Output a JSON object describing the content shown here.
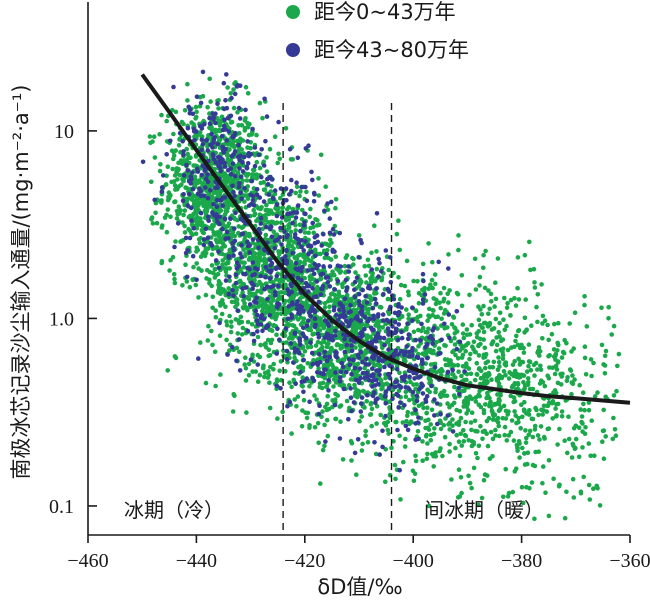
{
  "chart_data": {
    "type": "scatter",
    "title": "",
    "xlabel": "δD值/‰",
    "ylabel": "南极冰芯记录沙尘输入通量/(mg·m⁻²·a⁻¹)",
    "xlim": [
      -460,
      -360
    ],
    "ylim": [
      0.07,
      40
    ],
    "yscale": "log",
    "grid": false,
    "legend_position": "top",
    "x_ticks": [
      "−460",
      "−440",
      "−420",
      "−400",
      "−380",
      "−360"
    ],
    "y_ticks": [
      "10",
      "1.0",
      "0.1"
    ],
    "y_tick_values": [
      10,
      1.0,
      0.1
    ],
    "x_tick_values": [
      -460,
      -440,
      -420,
      -400,
      -380,
      -360
    ],
    "series": [
      {
        "name": "距今0~43万年",
        "color": "#1aa84a",
        "clusters": [
          {
            "x_mean": -437,
            "x_sd": 4.5,
            "log10y_mean": 0.72,
            "log10y_sd": 0.22,
            "count": 900
          },
          {
            "x_mean": -426,
            "x_sd": 6,
            "log10y_mean": 0.25,
            "log10y_sd": 0.25,
            "count": 1000
          },
          {
            "x_mean": -412,
            "x_sd": 7,
            "log10y_mean": -0.12,
            "log10y_sd": 0.22,
            "count": 800
          },
          {
            "x_mean": -395,
            "x_sd": 9,
            "log10y_mean": -0.3,
            "log10y_sd": 0.25,
            "count": 600
          },
          {
            "x_mean": -378,
            "x_sd": 9,
            "log10y_mean": -0.42,
            "log10y_sd": 0.28,
            "count": 500
          }
        ]
      },
      {
        "name": "距今43~80万年",
        "color": "#353a96",
        "clusters": [
          {
            "x_mean": -436,
            "x_sd": 4.5,
            "log10y_mean": 0.78,
            "log10y_sd": 0.22,
            "count": 250
          },
          {
            "x_mean": -424,
            "x_sd": 6,
            "log10y_mean": 0.28,
            "log10y_sd": 0.25,
            "count": 300
          },
          {
            "x_mean": -411,
            "x_sd": 6,
            "log10y_mean": -0.1,
            "log10y_sd": 0.2,
            "count": 280
          },
          {
            "x_mean": -402,
            "x_sd": 5,
            "log10y_mean": -0.25,
            "log10y_sd": 0.2,
            "count": 170
          }
        ]
      }
    ],
    "trend_line": {
      "x": [
        -450,
        -445,
        -440,
        -435,
        -430,
        -425,
        -420,
        -415,
        -410,
        -405,
        -400,
        -395,
        -390,
        -385,
        -380,
        -375,
        -370,
        -365,
        -360
      ],
      "y": [
        20,
        12.6,
        7.9,
        5.0,
        3.16,
        2.0,
        1.35,
        0.98,
        0.76,
        0.62,
        0.54,
        0.48,
        0.44,
        0.42,
        0.4,
        0.385,
        0.375,
        0.365,
        0.355
      ]
    },
    "reference_lines_x": [
      -424,
      -404
    ],
    "period_labels": [
      "冰期（冷）",
      "间冰期（暖）"
    ]
  }
}
